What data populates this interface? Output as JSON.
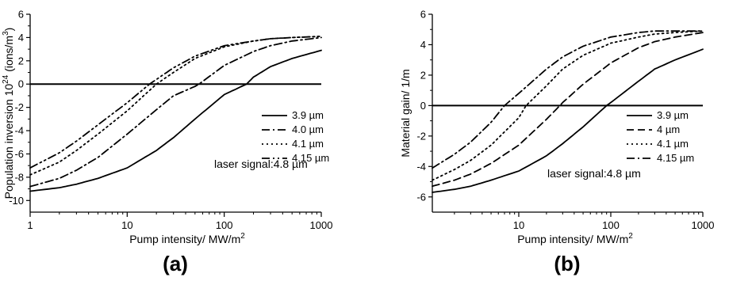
{
  "chart_data": [
    {
      "type": "line",
      "panel_label": "(a)",
      "xlabel": "Pump intensity/ MW/m",
      "xlabel_sup": "2",
      "ylabel": "Population inversion 10",
      "ylabel_sup": "24",
      "ylabel_unit": " (ions/m",
      "ylabel_unit_sup": "3",
      "ylabel_end": ")",
      "xscale": "log",
      "xlim": [
        1,
        1000
      ],
      "ylim": [
        -11,
        6
      ],
      "xticks": [
        1,
        10,
        100,
        1000
      ],
      "xtick_labels": [
        "1",
        "10",
        "100",
        "1000"
      ],
      "yticks": [
        -10,
        -8,
        -6,
        -4,
        -2,
        0,
        2,
        4,
        6
      ],
      "ytick_labels": [
        "-10",
        "-8",
        "-6",
        "-4",
        "-2",
        "0",
        "2",
        "4",
        "6"
      ],
      "reference_line_y": 0,
      "annotation": "laser signal:4.8 µm",
      "legend_position": "right",
      "series": [
        {
          "name": "3.9 µm",
          "dash": "solid",
          "x": [
            1,
            2,
            3,
            5,
            10,
            20,
            30,
            50,
            100,
            170,
            200,
            300,
            500,
            1000
          ],
          "y": [
            -9.2,
            -8.9,
            -8.6,
            -8.1,
            -7.2,
            -5.7,
            -4.6,
            -3.0,
            -0.9,
            0.0,
            0.6,
            1.5,
            2.2,
            2.9
          ]
        },
        {
          "name": "4.0 µm",
          "dash": "dashdot",
          "x": [
            1,
            2,
            3,
            5,
            10,
            20,
            30,
            50,
            55,
            100,
            200,
            300,
            500,
            1000
          ],
          "y": [
            -8.8,
            -8.1,
            -7.4,
            -6.3,
            -4.3,
            -2.2,
            -1.0,
            -0.2,
            0.0,
            1.6,
            2.8,
            3.3,
            3.7,
            4.0
          ]
        },
        {
          "name": "4.1 µm",
          "dash": "dot",
          "x": [
            1,
            2,
            3,
            5,
            10,
            20,
            30,
            50,
            100,
            200,
            300,
            500,
            1000
          ],
          "y": [
            -7.8,
            -6.7,
            -5.7,
            -4.3,
            -2.3,
            0.0,
            1.0,
            2.2,
            3.2,
            3.7,
            3.9,
            4.0,
            4.1
          ]
        },
        {
          "name": "4.15 µm",
          "dash": "dashdotdot",
          "x": [
            1,
            2,
            3,
            5,
            10,
            17,
            20,
            30,
            50,
            100,
            200,
            300,
            500,
            1000
          ],
          "y": [
            -7.2,
            -5.9,
            -4.9,
            -3.5,
            -1.6,
            0.0,
            0.4,
            1.4,
            2.4,
            3.3,
            3.7,
            3.9,
            4.0,
            4.1
          ]
        }
      ]
    },
    {
      "type": "line",
      "panel_label": "(b)",
      "xlabel": "Pump intensity/ MW/m",
      "xlabel_sup": "2",
      "ylabel": "Material gain/ 1/m",
      "xscale": "log",
      "xlim": [
        1.15,
        1000
      ],
      "ylim": [
        -7,
        6
      ],
      "xticks": [
        10,
        100,
        1000
      ],
      "xtick_labels": [
        "10",
        "100",
        "1000"
      ],
      "yticks": [
        -6,
        -4,
        -2,
        0,
        2,
        4,
        6
      ],
      "ytick_labels": [
        "-6",
        "-4",
        "-2",
        "0",
        "2",
        "4",
        "6"
      ],
      "reference_line_y": 0,
      "annotation": "laser signal:4.8 µm",
      "legend_position": "right",
      "series": [
        {
          "name": "3.9 µm",
          "dash": "solid",
          "x": [
            1.15,
            2,
            3,
            5,
            10,
            20,
            30,
            50,
            90,
            100,
            200,
            300,
            500,
            1000
          ],
          "y": [
            -5.7,
            -5.5,
            -5.3,
            -4.9,
            -4.3,
            -3.3,
            -2.5,
            -1.4,
            0.0,
            0.2,
            1.6,
            2.4,
            3.0,
            3.7
          ]
        },
        {
          "name": "4 µm",
          "dash": "dash",
          "x": [
            1.15,
            2,
            3,
            5,
            10,
            20,
            28,
            30,
            50,
            100,
            200,
            300,
            500,
            1000
          ],
          "y": [
            -5.3,
            -4.9,
            -4.5,
            -3.8,
            -2.6,
            -0.9,
            0.0,
            0.2,
            1.4,
            2.8,
            3.8,
            4.2,
            4.5,
            4.8
          ]
        },
        {
          "name": "4.1 µm",
          "dash": "dot",
          "x": [
            1.15,
            2,
            3,
            5,
            10,
            12,
            20,
            30,
            50,
            100,
            200,
            300,
            500,
            1000
          ],
          "y": [
            -4.9,
            -4.2,
            -3.6,
            -2.6,
            -0.8,
            0.0,
            1.3,
            2.4,
            3.3,
            4.1,
            4.5,
            4.7,
            4.8,
            4.9
          ]
        },
        {
          "name": "4.15 µm",
          "dash": "dashdot",
          "x": [
            1.15,
            2,
            3,
            5,
            7,
            10,
            20,
            30,
            50,
            100,
            200,
            300,
            500,
            1000
          ],
          "y": [
            -4.1,
            -3.2,
            -2.4,
            -1.1,
            0.0,
            0.8,
            2.4,
            3.2,
            3.9,
            4.5,
            4.8,
            4.9,
            4.9,
            4.9
          ]
        }
      ]
    }
  ]
}
